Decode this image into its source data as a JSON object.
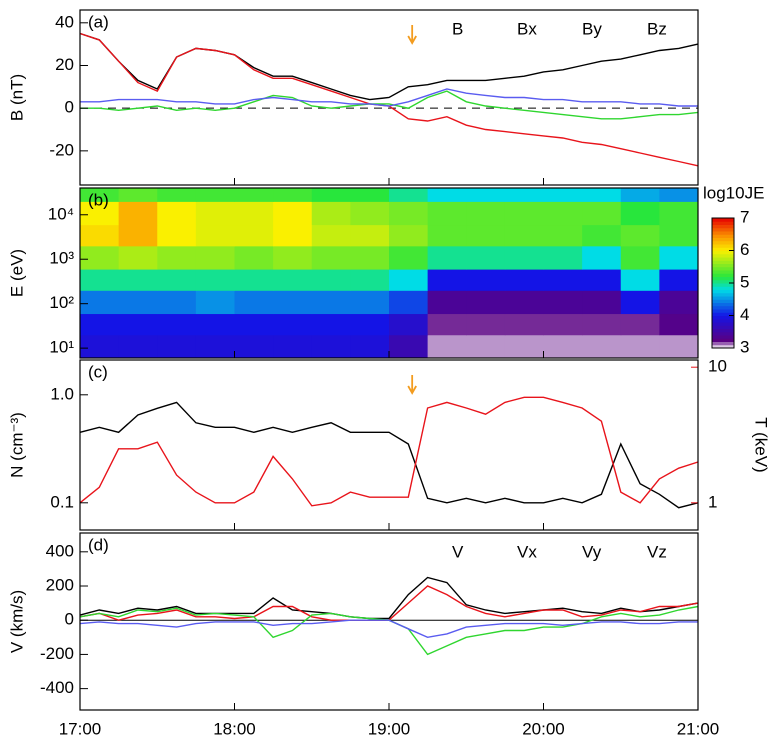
{
  "chart_data": [
    {
      "type": "line",
      "panel_label": "(a)",
      "ylabel": "B (nT)",
      "x": [
        17.0,
        17.125,
        17.25,
        17.375,
        17.5,
        17.625,
        17.75,
        17.875,
        18.0,
        18.125,
        18.25,
        18.375,
        18.5,
        18.625,
        18.75,
        18.875,
        19.0,
        19.125,
        19.25,
        19.375,
        19.5,
        19.625,
        19.75,
        19.875,
        20.0,
        20.125,
        20.25,
        20.375,
        20.5,
        20.625,
        20.75,
        20.875,
        21.0
      ],
      "xlim": [
        17,
        21
      ],
      "ylim": [
        -36,
        46
      ],
      "yticks": [
        -20,
        0,
        20,
        40
      ],
      "zero_line": true,
      "legend": "top-right",
      "marker_x": 19.15,
      "marker_color": "#f39c1f",
      "series": [
        {
          "name": "B",
          "color": "#000000",
          "values": [
            35,
            32,
            22,
            13,
            9,
            24,
            28,
            27,
            25,
            19,
            15,
            15,
            12,
            9,
            6,
            4,
            5,
            10,
            11,
            13,
            13,
            13,
            14,
            15,
            17,
            18,
            20,
            22,
            23,
            25,
            27,
            28,
            30
          ]
        },
        {
          "name": "Bx",
          "color": "#e8141b",
          "values": [
            35,
            32,
            22,
            12,
            8,
            24,
            28,
            27,
            25,
            18,
            14,
            14,
            11,
            8,
            5,
            2,
            1,
            -5,
            -6,
            -4,
            -8,
            -10,
            -11,
            -12,
            -13,
            -14,
            -16,
            -17,
            -19,
            -21,
            -23,
            -25,
            -27
          ]
        },
        {
          "name": "By",
          "color": "#2fd62f",
          "values": [
            0,
            0,
            -1,
            0,
            1,
            -1,
            0,
            -1,
            0,
            3,
            6,
            5,
            1,
            0,
            1,
            2,
            2,
            0,
            5,
            8,
            3,
            1,
            0,
            -1,
            -2,
            -3,
            -4,
            -5,
            -5,
            -4,
            -3,
            -3,
            -2
          ]
        },
        {
          "name": "Bz",
          "color": "#5a5cf0",
          "values": [
            3,
            3,
            4,
            4,
            4,
            3,
            3,
            2,
            2,
            4,
            5,
            4,
            3,
            3,
            2,
            2,
            1,
            3,
            6,
            9,
            7,
            6,
            5,
            5,
            4,
            4,
            3,
            3,
            3,
            2,
            2,
            1,
            1
          ]
        }
      ]
    },
    {
      "type": "heatmap",
      "panel_label": "(b)",
      "ylabel": "E (eV)",
      "ylog": true,
      "colormap": "rainbow",
      "xbins": [
        17.0,
        17.25,
        17.5,
        17.75,
        18.0,
        18.25,
        18.5,
        18.75,
        19.0,
        19.25,
        19.5,
        19.75,
        20.0,
        20.25,
        20.5,
        20.75,
        21.0
      ],
      "ybins": [
        6,
        20,
        60,
        200,
        600,
        2000,
        6000,
        20000,
        40000
      ],
      "xlim": [
        17,
        21
      ],
      "ylim": [
        6,
        40000
      ],
      "yticks": [
        {
          "value": 10,
          "label": "10¹"
        },
        {
          "value": 100,
          "label": "10²"
        },
        {
          "value": 1000,
          "label": "10³"
        },
        {
          "value": 10000,
          "label": "10⁴"
        }
      ],
      "z": [
        [
          3.9,
          3.9,
          3.9,
          3.9,
          3.9,
          3.9,
          3.9,
          3.9,
          3.6,
          3.1,
          3.1,
          3.1,
          3.1,
          3.1,
          3.1,
          3.1
        ],
        [
          4.0,
          4.0,
          4.0,
          4.0,
          4.0,
          4.0,
          4.0,
          4.0,
          3.8,
          3.2,
          3.2,
          3.2,
          3.2,
          3.2,
          3.2,
          3.3
        ],
        [
          4.4,
          4.4,
          4.4,
          4.5,
          4.4,
          4.4,
          4.4,
          4.4,
          4.2,
          3.4,
          3.4,
          3.4,
          3.4,
          3.4,
          4.0,
          3.4
        ],
        [
          5.0,
          5.0,
          5.0,
          5.0,
          5.0,
          5.0,
          5.0,
          5.0,
          4.8,
          4.0,
          4.0,
          4.0,
          4.0,
          4.0,
          4.8,
          4.0
        ],
        [
          5.6,
          5.7,
          5.6,
          5.6,
          5.5,
          5.6,
          5.5,
          5.5,
          5.3,
          5.0,
          5.0,
          5.0,
          5.0,
          4.8,
          5.3,
          4.8
        ],
        [
          6.1,
          6.3,
          6.0,
          5.9,
          5.9,
          6.0,
          5.8,
          5.8,
          5.6,
          5.4,
          5.4,
          5.4,
          5.4,
          5.3,
          5.4,
          5.3
        ],
        [
          6.0,
          6.3,
          6.0,
          5.9,
          5.9,
          6.0,
          5.7,
          5.6,
          5.5,
          5.4,
          5.4,
          5.4,
          5.4,
          5.4,
          5.2,
          5.3
        ],
        [
          5.3,
          5.4,
          5.3,
          5.3,
          5.3,
          5.3,
          5.2,
          5.2,
          5.0,
          4.8,
          4.8,
          4.8,
          4.8,
          4.8,
          4.6,
          4.5
        ]
      ],
      "colorbar": {
        "label": "log10JE",
        "lim": [
          3,
          7
        ],
        "ticks": [
          3,
          4,
          5,
          6,
          7
        ]
      }
    },
    {
      "type": "line",
      "panel_label": "(c)",
      "ylabel": "N (cm⁻³)",
      "y2label": "T (keV)",
      "ylog": true,
      "y2log": true,
      "y2color": "#e8141b",
      "x": [
        17.0,
        17.125,
        17.25,
        17.375,
        17.5,
        17.625,
        17.75,
        17.875,
        18.0,
        18.125,
        18.25,
        18.375,
        18.5,
        18.625,
        18.75,
        18.875,
        19.0,
        19.125,
        19.25,
        19.375,
        19.5,
        19.625,
        19.75,
        19.875,
        20.0,
        20.125,
        20.25,
        20.375,
        20.5,
        20.625,
        20.75,
        20.875,
        21.0
      ],
      "xlim": [
        17,
        21
      ],
      "ylim": [
        0.056,
        2.1
      ],
      "yticks": [
        0.1,
        {
          "value": 1,
          "label": "1.0"
        }
      ],
      "y2lim": [
        0.63,
        11.3
      ],
      "y2ticks": [
        1,
        10
      ],
      "marker_x": 19.15,
      "marker_color": "#f39c1f",
      "series": [
        {
          "name": "N",
          "color": "#000000",
          "values": [
            0.45,
            0.5,
            0.45,
            0.65,
            0.75,
            0.85,
            0.55,
            0.5,
            0.5,
            0.45,
            0.5,
            0.45,
            0.5,
            0.55,
            0.45,
            0.45,
            0.45,
            0.35,
            0.11,
            0.1,
            0.11,
            0.1,
            0.11,
            0.1,
            0.1,
            0.11,
            0.1,
            0.12,
            0.35,
            0.15,
            0.12,
            0.09,
            0.1
          ]
        },
        {
          "name": "T",
          "color": "#e8141b",
          "axis": "y2",
          "values": [
            1.0,
            1.3,
            2.5,
            2.5,
            2.8,
            1.6,
            1.2,
            1.0,
            1.0,
            1.2,
            2.2,
            1.5,
            0.95,
            1.0,
            1.2,
            1.1,
            1.1,
            1.1,
            5.0,
            5.5,
            5.0,
            4.5,
            5.5,
            6.0,
            6.0,
            5.5,
            5.0,
            4.0,
            1.2,
            1.0,
            1.5,
            1.8,
            2.0
          ]
        }
      ]
    },
    {
      "type": "line",
      "panel_label": "(d)",
      "ylabel": "V (km/s)",
      "x": [
        17.0,
        17.125,
        17.25,
        17.375,
        17.5,
        17.625,
        17.75,
        17.875,
        18.0,
        18.125,
        18.25,
        18.375,
        18.5,
        18.625,
        18.75,
        18.875,
        19.0,
        19.125,
        19.25,
        19.375,
        19.5,
        19.625,
        19.75,
        19.875,
        20.0,
        20.125,
        20.25,
        20.375,
        20.5,
        20.625,
        20.75,
        20.875,
        21.0
      ],
      "xlim": [
        17,
        21
      ],
      "ylim": [
        -525,
        510
      ],
      "yticks": [
        -400,
        -200,
        0,
        200,
        400
      ],
      "zero_line": true,
      "legend": "top-right",
      "xticks": [
        {
          "value": 17,
          "label": "17:00"
        },
        {
          "value": 18,
          "label": "18:00"
        },
        {
          "value": 19,
          "label": "19:00"
        },
        {
          "value": 20,
          "label": "20:00"
        },
        {
          "value": 21,
          "label": "21:00"
        }
      ],
      "series": [
        {
          "name": "V",
          "color": "#000000",
          "values": [
            30,
            60,
            40,
            70,
            60,
            80,
            40,
            40,
            40,
            40,
            130,
            60,
            50,
            40,
            20,
            10,
            10,
            150,
            250,
            220,
            90,
            60,
            40,
            50,
            60,
            70,
            50,
            40,
            70,
            50,
            60,
            80,
            100
          ]
        },
        {
          "name": "Vx",
          "color": "#e8141b",
          "values": [
            20,
            40,
            0,
            30,
            40,
            60,
            20,
            20,
            10,
            20,
            80,
            80,
            20,
            0,
            0,
            0,
            0,
            100,
            200,
            150,
            80,
            40,
            20,
            40,
            60,
            60,
            20,
            30,
            60,
            50,
            80,
            80,
            100
          ]
        },
        {
          "name": "Vy",
          "color": "#2fd62f",
          "values": [
            20,
            40,
            20,
            60,
            50,
            70,
            30,
            40,
            30,
            20,
            -100,
            -60,
            30,
            40,
            20,
            10,
            0,
            -50,
            -200,
            -150,
            -100,
            -80,
            -60,
            -60,
            -40,
            -40,
            -20,
            20,
            40,
            20,
            30,
            60,
            80
          ]
        },
        {
          "name": "Vz",
          "color": "#5a5cf0",
          "values": [
            -20,
            -10,
            -20,
            -20,
            -30,
            -40,
            -20,
            -10,
            -10,
            -10,
            -30,
            -20,
            -20,
            -10,
            0,
            0,
            0,
            -50,
            -100,
            -80,
            -40,
            -30,
            -20,
            -20,
            -20,
            -30,
            -20,
            -10,
            -10,
            -20,
            -20,
            -10,
            -10
          ]
        }
      ]
    }
  ]
}
